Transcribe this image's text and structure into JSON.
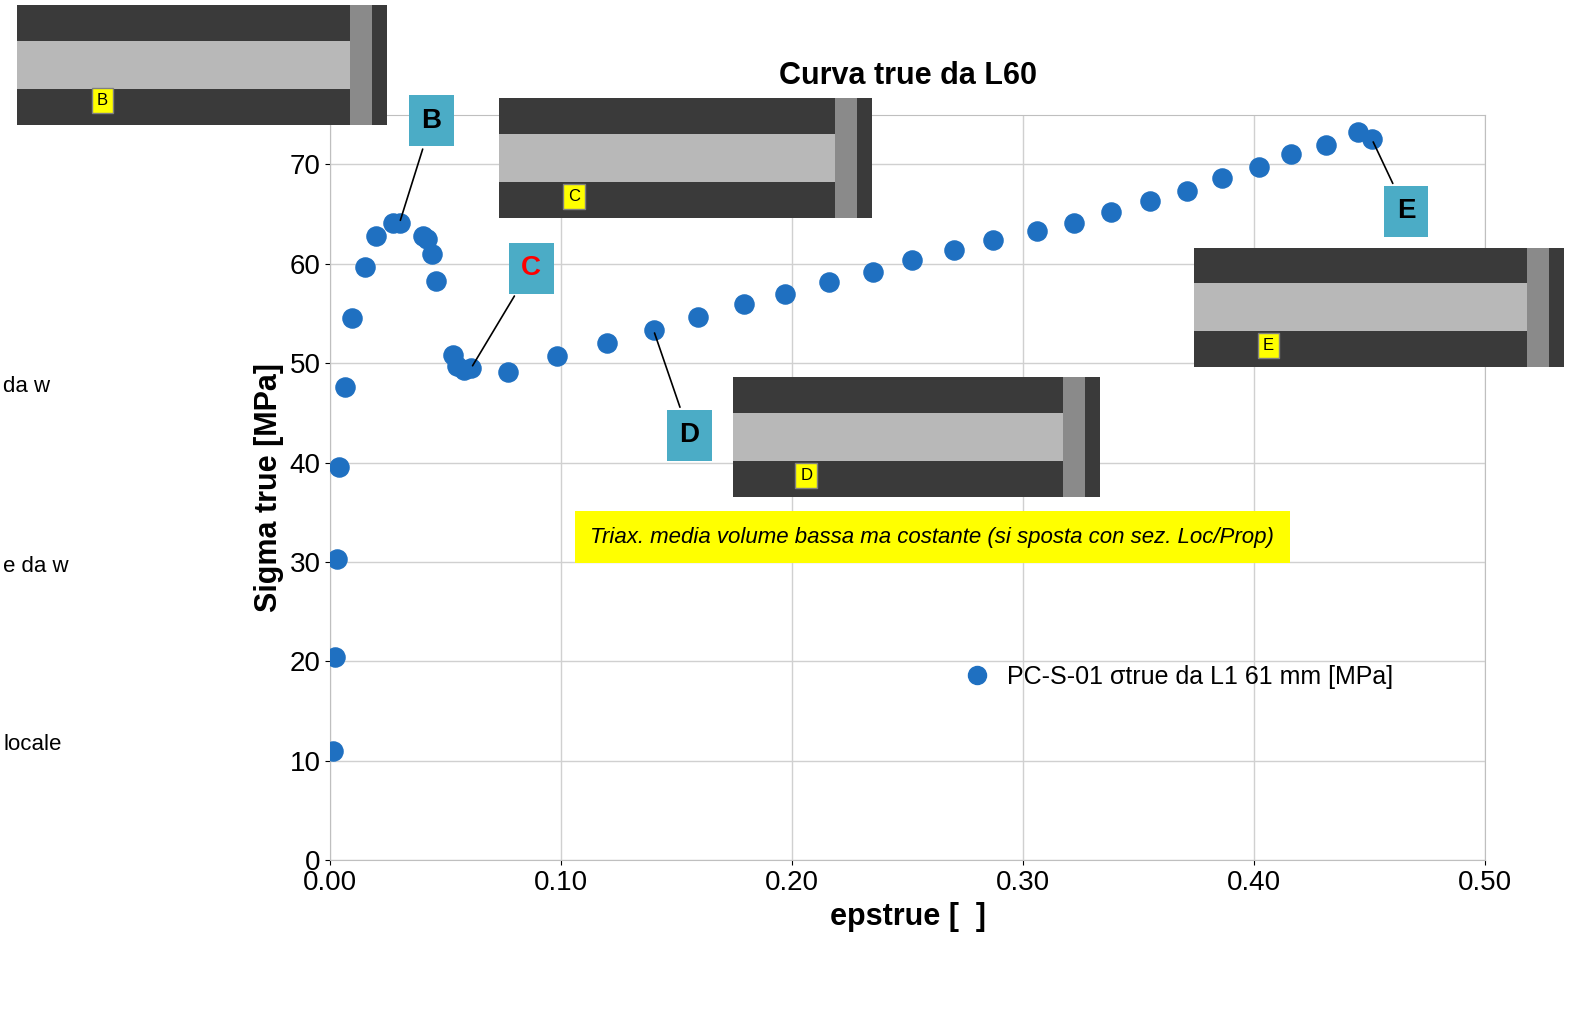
{
  "chart_data": {
    "type": "scatter",
    "title": "Curva true da L60",
    "x_label": "epstrue [  ]",
    "y_label": "Sigma true [MPa]",
    "series": [
      {
        "name": "PC-S-01 σtrue da L1 61 mm [MPa]",
        "color": "#1f70c1",
        "marker": "circle",
        "x": [
          0.001,
          0.002,
          0.003,
          0.004,
          0.0065,
          0.0095,
          0.015,
          0.02,
          0.027,
          0.03,
          0.04,
          0.042,
          0.044,
          0.046,
          0.053,
          0.055,
          0.058,
          0.061,
          0.077,
          0.098,
          0.12,
          0.14,
          0.159,
          0.179,
          0.197,
          0.216,
          0.235,
          0.252,
          0.27,
          0.287,
          0.306,
          0.322,
          0.338,
          0.355,
          0.371,
          0.386,
          0.402,
          0.416,
          0.431,
          0.445,
          0.451
        ],
        "values": [
          11.0,
          20.5,
          30.3,
          39.6,
          47.6,
          54.5,
          59.7,
          62.8,
          64.1,
          64.1,
          62.8,
          62.5,
          61.0,
          58.3,
          50.8,
          49.7,
          49.3,
          49.5,
          49.1,
          50.7,
          52.0,
          53.3,
          54.6,
          55.9,
          57.0,
          58.2,
          59.2,
          60.4,
          61.4,
          62.4,
          63.3,
          64.1,
          65.2,
          66.3,
          67.3,
          68.6,
          69.7,
          71.0,
          71.9,
          73.2,
          72.5
        ]
      }
    ],
    "xlim": [
      0,
      0.5
    ],
    "xticks": [
      {
        "value": 0,
        "label": "0.00"
      },
      {
        "value": 0.1,
        "label": "0.10"
      },
      {
        "value": 0.2,
        "label": "0.20"
      },
      {
        "value": 0.3,
        "label": "0.30"
      },
      {
        "value": 0.4,
        "label": "0.40"
      },
      {
        "value": 0.5,
        "label": "0.50"
      }
    ],
    "ylim": [
      0,
      75
    ],
    "yticks": [
      0,
      10,
      20,
      30,
      40,
      50,
      60,
      70
    ],
    "grid": true,
    "legend": "lower right",
    "annotations": [
      {
        "text": "B",
        "x": 0.03,
        "y": 64.1,
        "color": "#000000"
      },
      {
        "text": "C",
        "x": 0.061,
        "y": 49.5,
        "color": "#ff0000"
      },
      {
        "text": "D",
        "x": 0.14,
        "y": 53.3,
        "color": "#000000"
      },
      {
        "text": "E",
        "x": 0.451,
        "y": 72.5,
        "color": "#000000"
      }
    ],
    "note": "Triax. media volume bassa ma costante (si sposta con sez. Loc/Prop)",
    "inset_labels": [
      "B",
      "C",
      "D",
      "E"
    ],
    "side_texts": [
      "da w",
      "e da w",
      "locale"
    ]
  }
}
